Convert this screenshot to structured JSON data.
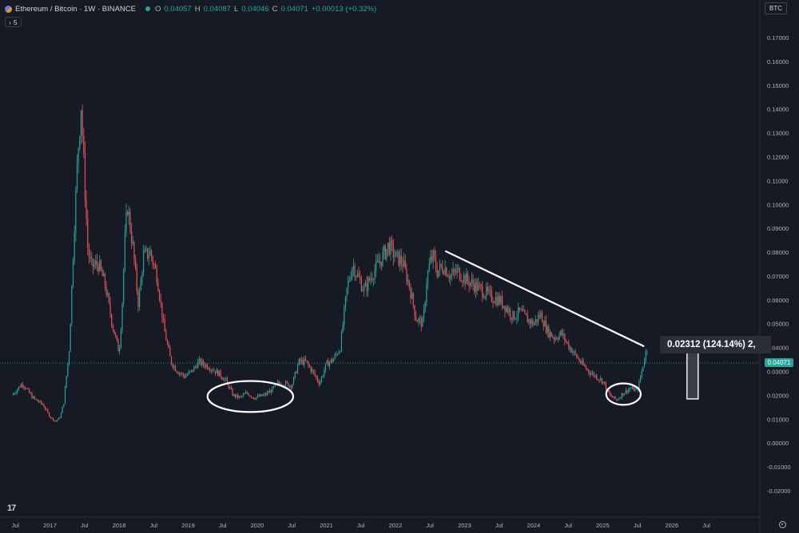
{
  "header": {
    "symbol_title": "Ethereum / Bitcoin · 1W · BINANCE",
    "open_label": "O",
    "open": "0.04057",
    "high_label": "H",
    "high": "0.04087",
    "low_label": "L",
    "low": "0.04046",
    "close_label": "C",
    "close": "0.04071",
    "change": "+0.00013 (+0.32%)",
    "indicator_count": "5",
    "currency_button": "BTC",
    "last_price_tag": "0.04071",
    "logo": "17"
  },
  "colors": {
    "background": "#161a25",
    "up": "#26a69a",
    "down": "#ef5350",
    "drawing": "#ffffff",
    "measure_box": "#2a2e39"
  },
  "icons": [
    "eth-btc-coin-icon",
    "status-dot-icon",
    "chevron-icon",
    "tradingview-logo-icon",
    "settings-icon"
  ],
  "chart_data": {
    "type": "line",
    "symbol": "ETH/BTC",
    "interval": "1W",
    "exchange": "BINANCE",
    "y_ticks": [
      "0.17000",
      "0.16000",
      "0.15000",
      "0.14000",
      "0.13000",
      "0.12000",
      "0.11000",
      "0.10000",
      "0.09000",
      "0.08000",
      "0.07000",
      "0.06000",
      "0.05000",
      "0.04000",
      "0.03000",
      "0.02000",
      "0.01000",
      "0.00000",
      "-0.01000",
      "-0.02000"
    ],
    "ylim": [
      -0.02,
      0.17
    ],
    "x_ticks": [
      "Jul",
      "2017",
      "Jul",
      "2018",
      "Jul",
      "2019",
      "Jul",
      "2020",
      "Jul",
      "2021",
      "Jul",
      "2022",
      "Jul",
      "2023",
      "Jul",
      "2024",
      "Jul",
      "2025",
      "Jul",
      "2026",
      "Jul"
    ],
    "x": [
      2016.45,
      2016.6,
      2016.75,
      2016.9,
      2017.0,
      2017.08,
      2017.15,
      2017.2,
      2017.28,
      2017.35,
      2017.4,
      2017.45,
      2017.5,
      2017.55,
      2017.6,
      2017.7,
      2017.8,
      2017.9,
      2018.0,
      2018.04,
      2018.08,
      2018.12,
      2018.2,
      2018.28,
      2018.35,
      2018.45,
      2018.55,
      2018.65,
      2018.75,
      2018.85,
      2018.95,
      2019.05,
      2019.15,
      2019.3,
      2019.45,
      2019.55,
      2019.65,
      2019.75,
      2019.85,
      2019.95,
      2020.1,
      2020.2,
      2020.3,
      2020.4,
      2020.5,
      2020.6,
      2020.7,
      2020.8,
      2020.9,
      2021.0,
      2021.1,
      2021.2,
      2021.3,
      2021.38,
      2021.45,
      2021.55,
      2021.65,
      2021.75,
      2021.85,
      2021.9,
      2022.0,
      2022.1,
      2022.2,
      2022.3,
      2022.4,
      2022.45,
      2022.5,
      2022.55,
      2022.6,
      2022.7,
      2022.8,
      2022.9,
      2023.0,
      2023.1,
      2023.2,
      2023.3,
      2023.4,
      2023.5,
      2023.6,
      2023.7,
      2023.8,
      2023.9,
      2024.0,
      2024.1,
      2024.2,
      2024.3,
      2024.4,
      2024.5,
      2024.6,
      2024.7,
      2024.8,
      2024.9,
      2025.0,
      2025.1,
      2025.2,
      2025.3,
      2025.4,
      2025.5,
      2025.55,
      2025.6,
      2025.65
    ],
    "series": [
      {
        "values": [
          0.02,
          0.025,
          0.019,
          0.016,
          0.011,
          0.009,
          0.011,
          0.017,
          0.04,
          0.09,
          0.12,
          0.142,
          0.11,
          0.08,
          0.074,
          0.075,
          0.066,
          0.05,
          0.038,
          0.055,
          0.083,
          0.1,
          0.082,
          0.058,
          0.078,
          0.08,
          0.07,
          0.048,
          0.034,
          0.03,
          0.028,
          0.03,
          0.034,
          0.032,
          0.029,
          0.026,
          0.02,
          0.019,
          0.021,
          0.019,
          0.02,
          0.022,
          0.025,
          0.025,
          0.024,
          0.034,
          0.034,
          0.03,
          0.025,
          0.033,
          0.035,
          0.04,
          0.065,
          0.075,
          0.07,
          0.064,
          0.07,
          0.075,
          0.08,
          0.083,
          0.078,
          0.076,
          0.066,
          0.052,
          0.05,
          0.068,
          0.076,
          0.078,
          0.072,
          0.074,
          0.07,
          0.072,
          0.069,
          0.067,
          0.065,
          0.063,
          0.061,
          0.06,
          0.057,
          0.053,
          0.055,
          0.052,
          0.05,
          0.054,
          0.047,
          0.044,
          0.046,
          0.041,
          0.037,
          0.033,
          0.03,
          0.028,
          0.026,
          0.02,
          0.018,
          0.021,
          0.023,
          0.022,
          0.028,
          0.035,
          0.04071
        ]
      }
    ],
    "annotations": {
      "measure_text": "0.02312 (124.14%) 2,",
      "trendline": {
        "x": [
          2022.72,
          2025.6
        ],
        "y": [
          0.0805,
          0.0405
        ]
      },
      "ellipses": [
        {
          "cx": 2019.9,
          "cy": 0.0195,
          "rx": 0.62,
          "ry": 0.0065
        },
        {
          "cx": 2025.3,
          "cy": 0.0205,
          "rx": 0.25,
          "ry": 0.0045
        }
      ],
      "arrow": {
        "x": 2026.3,
        "from": 0.0185,
        "to": 0.0416
      }
    },
    "grid": false,
    "legend": "top-left"
  }
}
